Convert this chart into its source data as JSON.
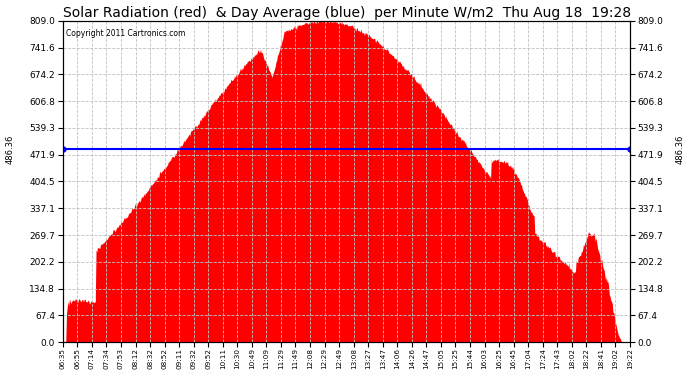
{
  "title": "Solar Radiation (red)  & Day Average (blue)  per Minute W/m2  Thu Aug 18  19:28",
  "copyright": "Copyright 2011 Cartronics.com",
  "ymin": 0.0,
  "ymax": 809.0,
  "yticks": [
    0.0,
    67.4,
    134.8,
    202.2,
    269.7,
    337.1,
    404.5,
    471.9,
    539.3,
    606.8,
    674.2,
    741.6,
    809.0
  ],
  "day_average": 486.36,
  "avg_label": "486.36",
  "bar_color": "#FF0000",
  "avg_line_color": "#0000FF",
  "background_color": "#FFFFFF",
  "grid_color": "#C0C0C0",
  "title_fontsize": 10,
  "xtick_labels": [
    "06:35",
    "06:55",
    "07:14",
    "07:34",
    "07:53",
    "08:12",
    "08:32",
    "08:52",
    "09:11",
    "09:32",
    "09:52",
    "10:11",
    "10:30",
    "10:49",
    "11:09",
    "11:29",
    "11:49",
    "12:08",
    "12:29",
    "12:49",
    "13:08",
    "13:27",
    "13:47",
    "14:06",
    "14:26",
    "14:47",
    "15:05",
    "15:25",
    "15:44",
    "16:03",
    "16:25",
    "16:45",
    "17:04",
    "17:24",
    "17:43",
    "18:02",
    "18:22",
    "18:41",
    "19:02",
    "19:22"
  ]
}
